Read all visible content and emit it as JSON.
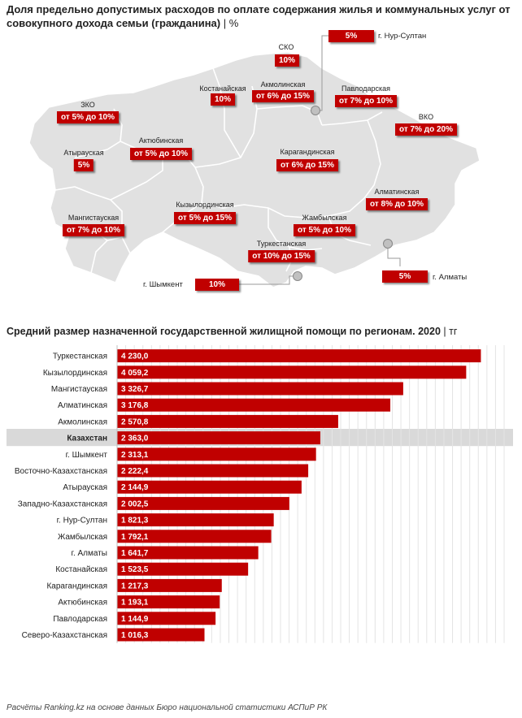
{
  "map_section": {
    "title": "Доля предельно допустимых расходов по оплате содержания жилья и коммунальных услуг от совокупного дохода семьи (гражданина)",
    "unit": "%",
    "colors": {
      "land": "#e1e1e1",
      "border": "#ffffff",
      "badge": "#c00000",
      "city_marker": "#c0c0c0"
    },
    "regions": [
      {
        "name": "СКО",
        "value": "10%"
      },
      {
        "name": "Костанайская",
        "value": "10%"
      },
      {
        "name": "Акмолинская",
        "value": "от 6% до 15%"
      },
      {
        "name": "Павлодарская",
        "value": "от 7% до 10%"
      },
      {
        "name": "ЗКО",
        "value": "от 5% до 10%"
      },
      {
        "name": "ВКО",
        "value": "от 7% до 20%"
      },
      {
        "name": "Актюбинская",
        "value": "от 5% до 10%"
      },
      {
        "name": "Атырауская",
        "value": "5%"
      },
      {
        "name": "Карагандинская",
        "value": "от 6% до 15%"
      },
      {
        "name": "Алматинская",
        "value": "от 8% до 10%"
      },
      {
        "name": "Кызылординская",
        "value": "от 5% до 15%"
      },
      {
        "name": "Мангистауская",
        "value": "от 7% до 10%"
      },
      {
        "name": "Жамбылская",
        "value": "от 5% до 10%"
      },
      {
        "name": "Туркестанская",
        "value": "от 10% до 15%"
      }
    ],
    "cities": [
      {
        "name": "г. Нур-Султан",
        "value": "5%"
      },
      {
        "name": "г. Шымкент",
        "value": "10%"
      },
      {
        "name": "г. Алматы",
        "value": "5%"
      }
    ]
  },
  "chart_data": {
    "type": "bar",
    "orientation": "horizontal",
    "title": "Средний размер назначенной государственной жилищной помощи по регионам. 2020",
    "unit": "тг",
    "xlim": [
      0,
      4500
    ],
    "grid": true,
    "highlight_category": "Казахстан",
    "colors": {
      "bar": "#c00000",
      "highlight_band": "#d9d9d9"
    },
    "categories": [
      "Туркестанская",
      "Кызылординская",
      "Мангистауская",
      "Алматинская",
      "Акмолинская",
      "Казахстан",
      "г. Шымкент",
      "Восточно-Казахстанская",
      "Атырауская",
      "Западно-Казахстанская",
      "г. Нур-Султан",
      "Жамбылская",
      "г. Алматы",
      "Костанайская",
      "Карагандинская",
      "Актюбинская",
      "Павлодарская",
      "Северо-Казахстанская"
    ],
    "values": [
      4230.0,
      4059.2,
      3326.7,
      3176.8,
      2570.8,
      2363.0,
      2313.1,
      2222.4,
      2144.9,
      2002.5,
      1821.3,
      1792.1,
      1641.7,
      1523.5,
      1217.3,
      1193.1,
      1144.9,
      1016.3
    ],
    "value_labels": [
      "4 230,0",
      "4 059,2",
      "3 326,7",
      "3 176,8",
      "2 570,8",
      "2 363,0",
      "2 313,1",
      "2 222,4",
      "2 144,9",
      "2 002,5",
      "1 821,3",
      "1 792,1",
      "1 641,7",
      "1 523,5",
      "1 217,3",
      "1 193,1",
      "1 144,9",
      "1 016,3"
    ]
  },
  "footer": "Расчёты Ranking.kz на основе данных Бюро национальной статистики АСПиР РК"
}
